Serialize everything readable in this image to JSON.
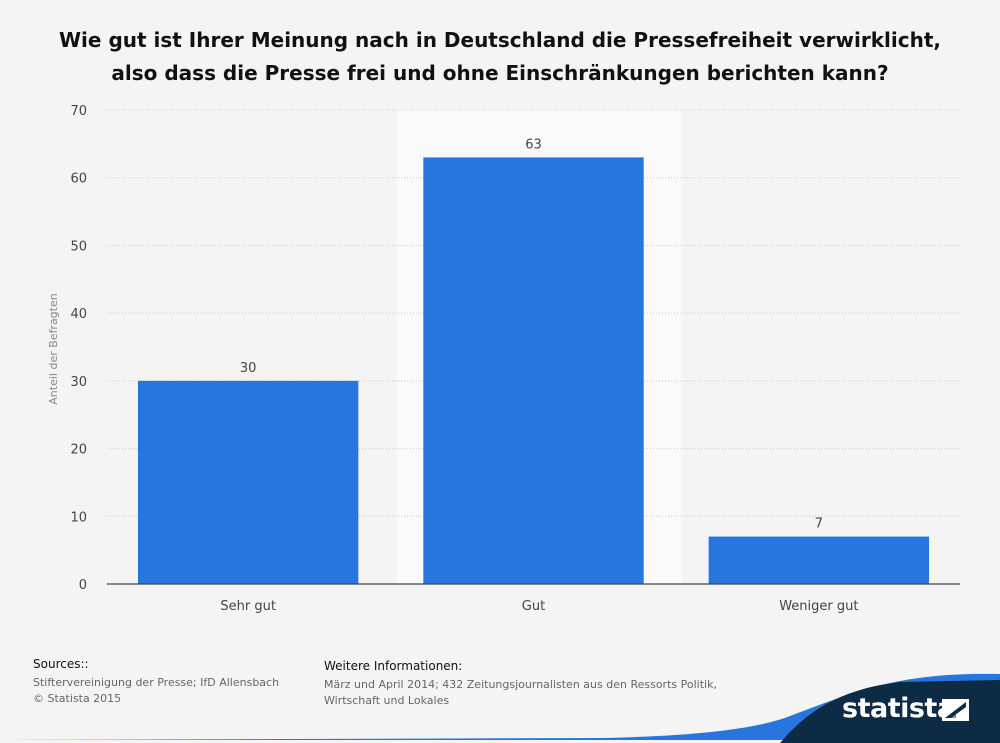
{
  "title": {
    "line1": "Wie gut ist Ihrer Meinung nach in Deutschland die Pressefreiheit verwirklicht,",
    "line2": "also dass die Presse frei und ohne Einschränkungen berichten kann?"
  },
  "chart_data": {
    "type": "bar",
    "title": "Wie gut ist Ihrer Meinung nach in Deutschland die Pressefreiheit verwirklicht, also dass die Presse frei und ohne Einschränkungen berichten kann?",
    "categories": [
      "Sehr gut",
      "Gut",
      "Weniger gut"
    ],
    "values": [
      30,
      63,
      7
    ],
    "data_labels": [
      "30",
      "63",
      "7"
    ],
    "xlabel": "",
    "ylabel": "Anteil der Befragten",
    "ylim": [
      0,
      70
    ],
    "yticks": [
      0,
      10,
      20,
      30,
      40,
      50,
      60,
      70
    ],
    "ytick_labels": [
      "0",
      "10",
      "20",
      "30",
      "40",
      "50",
      "60",
      "70"
    ],
    "grid": true,
    "bar_color": "#2876dd",
    "highlight_category": "Gut"
  },
  "footer": {
    "sources_heading": "Sources::",
    "sources_lines": [
      "Stiftervereinigung der Presse; IfD Allensbach",
      "© Statista 2015"
    ],
    "info_heading": "Weitere Informationen:",
    "info_lines": [
      "März und April 2014; 432 Zeitungsjournalisten aus den Ressorts Politik,",
      "Wirtschaft und Lokales"
    ]
  },
  "brand": {
    "name": "statista",
    "dark_color": "#0d2b45",
    "accent_color": "#2876dd"
  }
}
